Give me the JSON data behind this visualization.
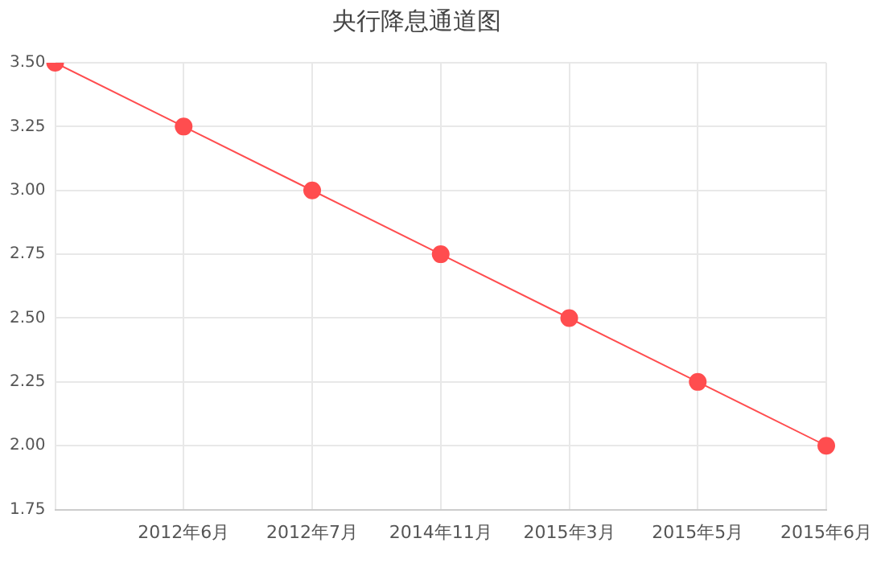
{
  "chart_data": {
    "type": "line",
    "title": "央行降息通道图",
    "categories": [
      null,
      "2012年6月",
      "2012年7月",
      "2014年11月",
      "2015年3月",
      "2015年5月",
      "2015年6月"
    ],
    "series": [
      {
        "color": "#ff4d4f",
        "values": [
          3.5,
          3.25,
          3.0,
          2.75,
          2.5,
          2.25,
          2.0
        ]
      }
    ],
    "ylim": [
      1.75,
      3.5
    ],
    "yticks": [
      {
        "value": 1.75,
        "label": "1.75"
      },
      {
        "value": 2,
        "label": "2.00"
      },
      {
        "value": 2.25,
        "label": "2.25"
      },
      {
        "value": 2.5,
        "label": "2.50"
      },
      {
        "value": 2.75,
        "label": "2.75"
      },
      {
        "value": 3,
        "label": "3.00"
      },
      {
        "value": 3.25,
        "label": "3.25"
      },
      {
        "value": 3.5,
        "label": "3.50"
      }
    ],
    "grid": true,
    "legend": false,
    "marker": "circle",
    "line_style": "solid"
  }
}
